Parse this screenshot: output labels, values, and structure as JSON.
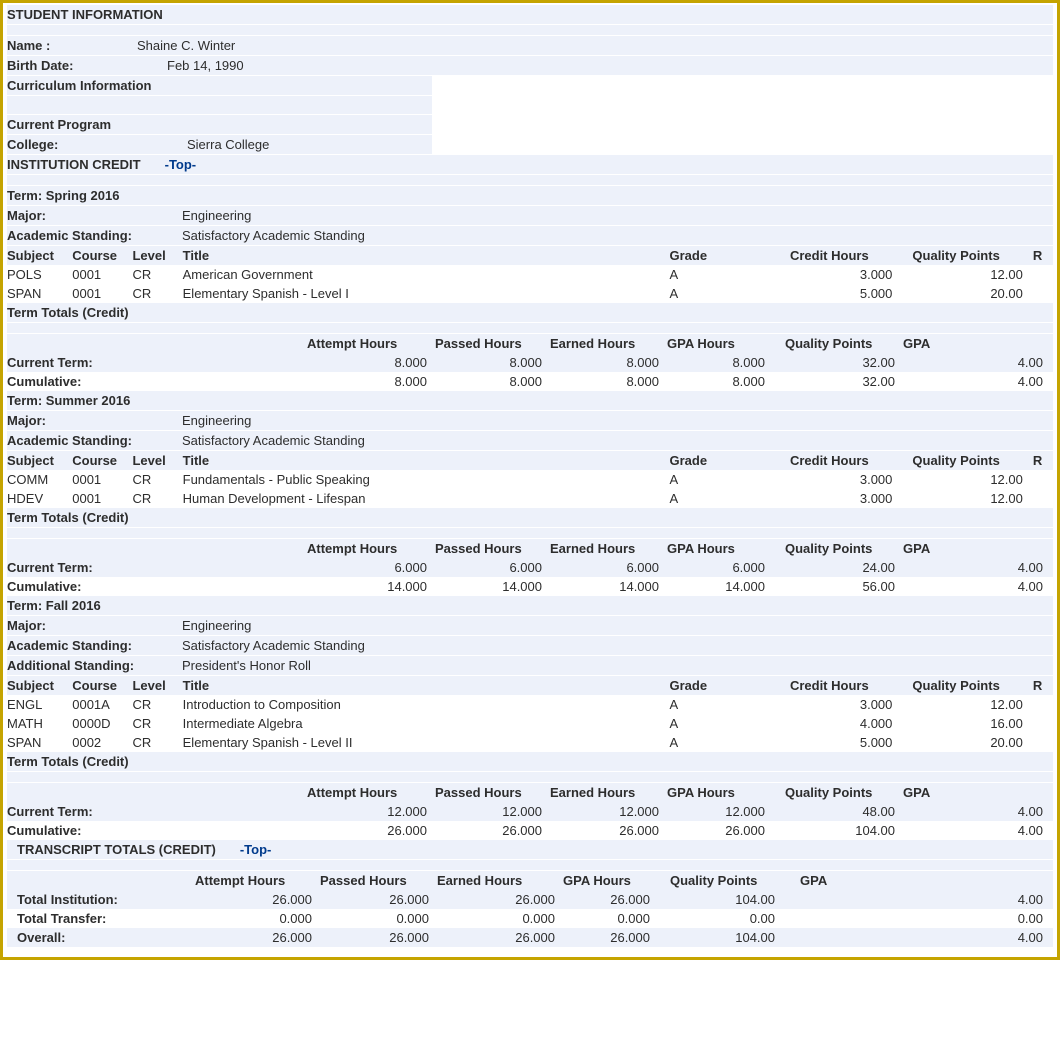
{
  "colors": {
    "border": "#c5a400",
    "shade": "#edf1fa",
    "link": "#003a8c",
    "text": "#2d2d2d"
  },
  "student_info": {
    "header": "STUDENT INFORMATION",
    "name_label": "Name :",
    "name": "Shaine C. Winter",
    "birth_label": "Birth Date:",
    "birth": "Feb 14, 1990",
    "curric_header": "Curriculum Information",
    "program_header": "Current Program",
    "college_label": "College:",
    "college": "Sierra College"
  },
  "inst_credit": {
    "label": "INSTITUTION CREDIT",
    "top": "-Top-"
  },
  "course_headers": {
    "subject": "Subject",
    "course": "Course",
    "level": "Level",
    "title": "Title",
    "grade": "Grade",
    "hours": "Credit Hours",
    "qp": "Quality Points",
    "r": "R"
  },
  "totals_headers": {
    "ah": "Attempt Hours",
    "ph": "Passed Hours",
    "eh": "Earned Hours",
    "gh": "GPA Hours",
    "qp": "Quality Points",
    "gpa": "GPA"
  },
  "term_totals_label": "Term Totals (Credit)",
  "current_term_label": "Current Term:",
  "cumulative_label": "Cumulative:",
  "major_label": "Major:",
  "standing_label": "Academic Standing:",
  "add_standing_label": "Additional Standing:",
  "terms": [
    {
      "term_label": "Term: Spring 2016",
      "major": "Engineering",
      "standing": "Satisfactory Academic Standing",
      "additional_standing": null,
      "courses": [
        {
          "subj": "POLS",
          "crs": "0001",
          "lvl": "CR",
          "title": "American Government",
          "grade": "A",
          "hours": "3.000",
          "qp": "12.00"
        },
        {
          "subj": "SPAN",
          "crs": "0001",
          "lvl": "CR",
          "title": "Elementary Spanish - Level I",
          "grade": "A",
          "hours": "5.000",
          "qp": "20.00"
        }
      ],
      "current": {
        "ah": "8.000",
        "ph": "8.000",
        "eh": "8.000",
        "gh": "8.000",
        "qp": "32.00",
        "gpa": "4.00"
      },
      "cumulative": {
        "ah": "8.000",
        "ph": "8.000",
        "eh": "8.000",
        "gh": "8.000",
        "qp": "32.00",
        "gpa": "4.00"
      }
    },
    {
      "term_label": "Term: Summer 2016",
      "major": "Engineering",
      "standing": "Satisfactory Academic Standing",
      "additional_standing": null,
      "courses": [
        {
          "subj": "COMM",
          "crs": "0001",
          "lvl": "CR",
          "title": "Fundamentals - Public Speaking",
          "grade": "A",
          "hours": "3.000",
          "qp": "12.00"
        },
        {
          "subj": "HDEV",
          "crs": "0001",
          "lvl": "CR",
          "title": "Human Development - Lifespan",
          "grade": "A",
          "hours": "3.000",
          "qp": "12.00"
        }
      ],
      "current": {
        "ah": "6.000",
        "ph": "6.000",
        "eh": "6.000",
        "gh": "6.000",
        "qp": "24.00",
        "gpa": "4.00"
      },
      "cumulative": {
        "ah": "14.000",
        "ph": "14.000",
        "eh": "14.000",
        "gh": "14.000",
        "qp": "56.00",
        "gpa": "4.00"
      }
    },
    {
      "term_label": "Term: Fall 2016",
      "major": "Engineering",
      "standing": "Satisfactory Academic Standing",
      "additional_standing": "President's Honor Roll",
      "courses": [
        {
          "subj": "ENGL",
          "crs": "0001A",
          "lvl": "CR",
          "title": "Introduction to Composition",
          "grade": "A",
          "hours": "3.000",
          "qp": "12.00"
        },
        {
          "subj": "MATH",
          "crs": "0000D",
          "lvl": "CR",
          "title": "Intermediate Algebra",
          "grade": "A",
          "hours": "4.000",
          "qp": "16.00"
        },
        {
          "subj": "SPAN",
          "crs": "0002",
          "lvl": "CR",
          "title": "Elementary Spanish - Level II",
          "grade": "A",
          "hours": "5.000",
          "qp": "20.00"
        }
      ],
      "current": {
        "ah": "12.000",
        "ph": "12.000",
        "eh": "12.000",
        "gh": "12.000",
        "qp": "48.00",
        "gpa": "4.00"
      },
      "cumulative": {
        "ah": "26.000",
        "ph": "26.000",
        "eh": "26.000",
        "gh": "26.000",
        "qp": "104.00",
        "gpa": "4.00"
      }
    }
  ],
  "transcript": {
    "header": "TRANSCRIPT TOTALS (CREDIT)",
    "top": "-Top-",
    "rows": [
      {
        "label": "Total Institution:",
        "ah": "26.000",
        "ph": "26.000",
        "eh": "26.000",
        "gh": "26.000",
        "qp": "104.00",
        "gpa": "4.00"
      },
      {
        "label": "Total Transfer:",
        "ah": "0.000",
        "ph": "0.000",
        "eh": "0.000",
        "gh": "0.000",
        "qp": "0.00",
        "gpa": "0.00"
      },
      {
        "label": "Overall:",
        "ah": "26.000",
        "ph": "26.000",
        "eh": "26.000",
        "gh": "26.000",
        "qp": "104.00",
        "gpa": "4.00"
      }
    ]
  }
}
